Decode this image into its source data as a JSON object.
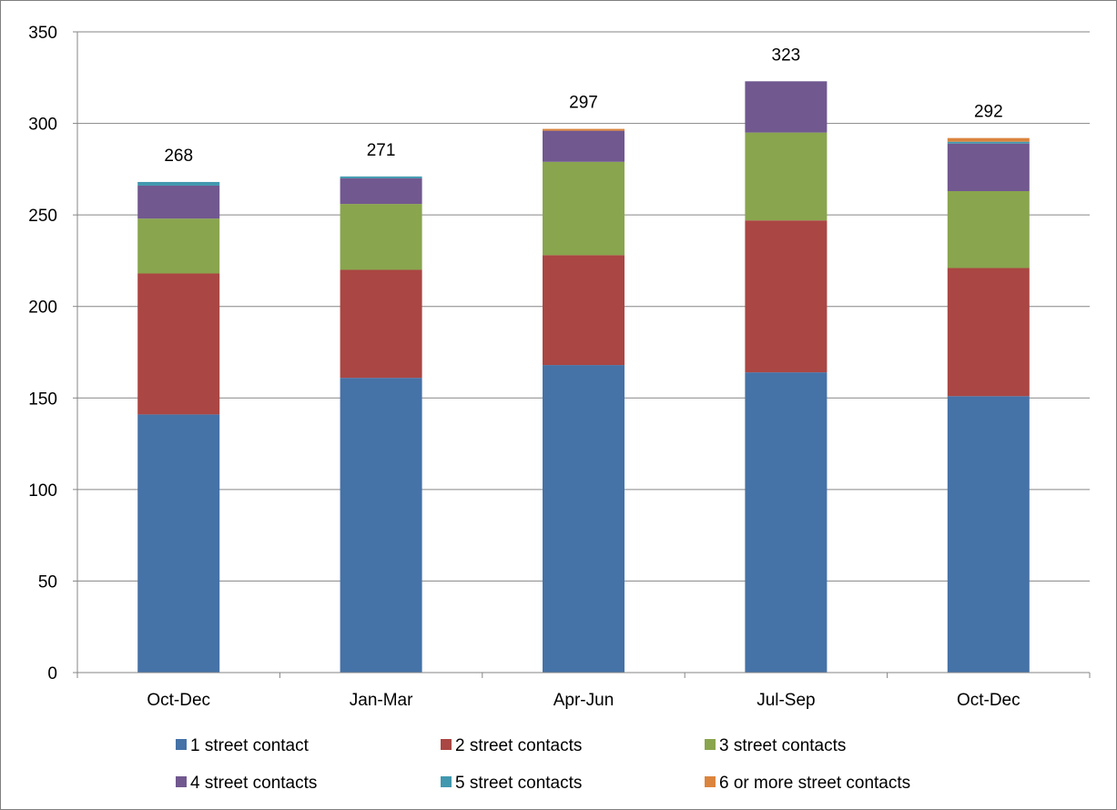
{
  "chart_data": {
    "type": "bar",
    "stacked": true,
    "categories": [
      "Oct-Dec",
      "Jan-Mar",
      "Apr-Jun",
      "Jul-Sep",
      "Oct-Dec"
    ],
    "totals": [
      268,
      271,
      297,
      323,
      292
    ],
    "series": [
      {
        "name": "1 street contact",
        "color": "#4572a7",
        "values": [
          141,
          161,
          168,
          164,
          151
        ]
      },
      {
        "name": "2 street contacts",
        "color": "#aa4643",
        "values": [
          77,
          59,
          60,
          83,
          70
        ]
      },
      {
        "name": "3 street contacts",
        "color": "#89a54e",
        "values": [
          30,
          36,
          51,
          48,
          42
        ]
      },
      {
        "name": "4 street contacts",
        "color": "#71588f",
        "values": [
          18,
          14,
          17,
          28,
          26
        ]
      },
      {
        "name": "5 street contacts",
        "color": "#4198af",
        "values": [
          2,
          1,
          0,
          0,
          1
        ]
      },
      {
        "name": "6 or more street contacts",
        "color": "#db843d",
        "values": [
          0,
          0,
          1,
          0,
          2
        ]
      }
    ],
    "ylim": [
      0,
      350
    ],
    "yticks": [
      "0",
      "50",
      "100",
      "150",
      "200",
      "250",
      "300",
      "350"
    ],
    "grid": true,
    "legend": "bottom"
  }
}
